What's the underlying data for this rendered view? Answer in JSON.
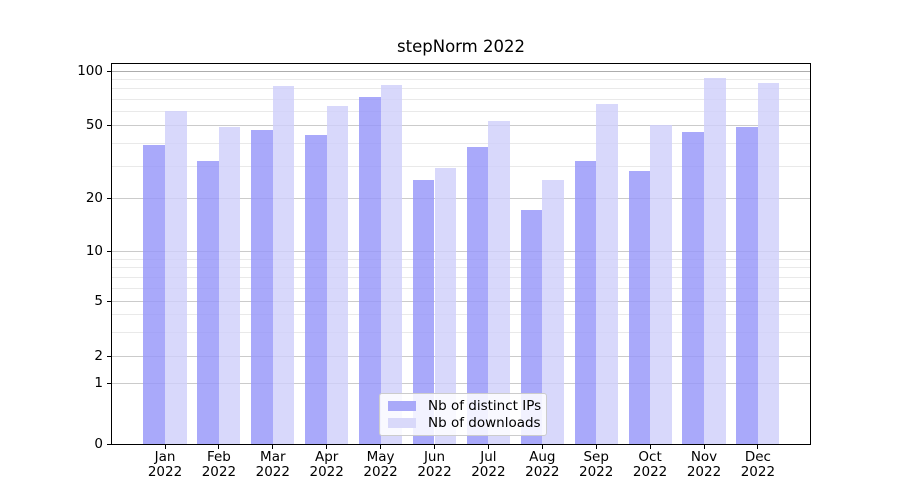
{
  "title": "stepNorm 2022",
  "axes": {
    "y_tick_labels": [
      "100",
      "50",
      "20",
      "10",
      "5",
      "2",
      "1",
      "0"
    ],
    "y_tick_values": [
      100,
      50,
      20,
      10,
      5,
      2,
      1,
      0
    ],
    "y_minor_values": [
      3,
      4,
      6,
      7,
      8,
      9,
      30,
      40,
      60,
      70,
      80,
      90
    ]
  },
  "chart_data": {
    "type": "bar",
    "title": "stepNorm 2022",
    "categories": [
      "Jan 2022",
      "Feb 2022",
      "Mar 2022",
      "Apr 2022",
      "May 2022",
      "Jun 2022",
      "Jul 2022",
      "Aug 2022",
      "Sep 2022",
      "Oct 2022",
      "Nov 2022",
      "Dec 2022"
    ],
    "series": [
      {
        "name": "Nb of distinct IPs",
        "color": "#a9a9f9",
        "values": [
          39,
          32,
          47,
          44,
          72,
          25,
          38,
          17,
          32,
          28,
          46,
          49
        ]
      },
      {
        "name": "Nb of downloads",
        "color": "#d9d9fa",
        "values": [
          60,
          49,
          83,
          64,
          84,
          29,
          53,
          25,
          66,
          50,
          92,
          86
        ]
      }
    ],
    "xlabel": "",
    "ylabel": "",
    "yscale": "symlog",
    "ylim": [
      0,
      113
    ],
    "y_ticks": [
      0,
      1,
      2,
      5,
      10,
      20,
      50,
      100
    ],
    "grid": true,
    "legend_position": "lower center"
  }
}
